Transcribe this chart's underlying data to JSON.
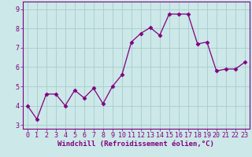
{
  "x": [
    0,
    1,
    2,
    3,
    4,
    5,
    6,
    7,
    8,
    9,
    10,
    11,
    12,
    13,
    14,
    15,
    16,
    17,
    18,
    19,
    20,
    21,
    22,
    23
  ],
  "y": [
    4.0,
    3.3,
    4.6,
    4.6,
    4.0,
    4.8,
    4.4,
    4.9,
    4.1,
    5.0,
    5.6,
    7.3,
    7.75,
    8.05,
    7.65,
    8.75,
    8.75,
    8.75,
    7.2,
    7.3,
    5.8,
    5.9,
    5.9,
    6.25
  ],
  "line_color": "#800080",
  "marker": "D",
  "marker_size": 2.5,
  "bg_color": "#cce8e8",
  "grid_color": "#aacccc",
  "xlabel": "Windchill (Refroidissement éolien,°C)",
  "xlabel_fontsize": 6.5,
  "ylim": [
    2.8,
    9.4
  ],
  "xlim": [
    -0.5,
    23.5
  ],
  "yticks": [
    3,
    4,
    5,
    6,
    7,
    8,
    9
  ],
  "xticks": [
    0,
    1,
    2,
    3,
    4,
    5,
    6,
    7,
    8,
    9,
    10,
    11,
    12,
    13,
    14,
    15,
    16,
    17,
    18,
    19,
    20,
    21,
    22,
    23
  ],
  "tick_fontsize": 6.0
}
